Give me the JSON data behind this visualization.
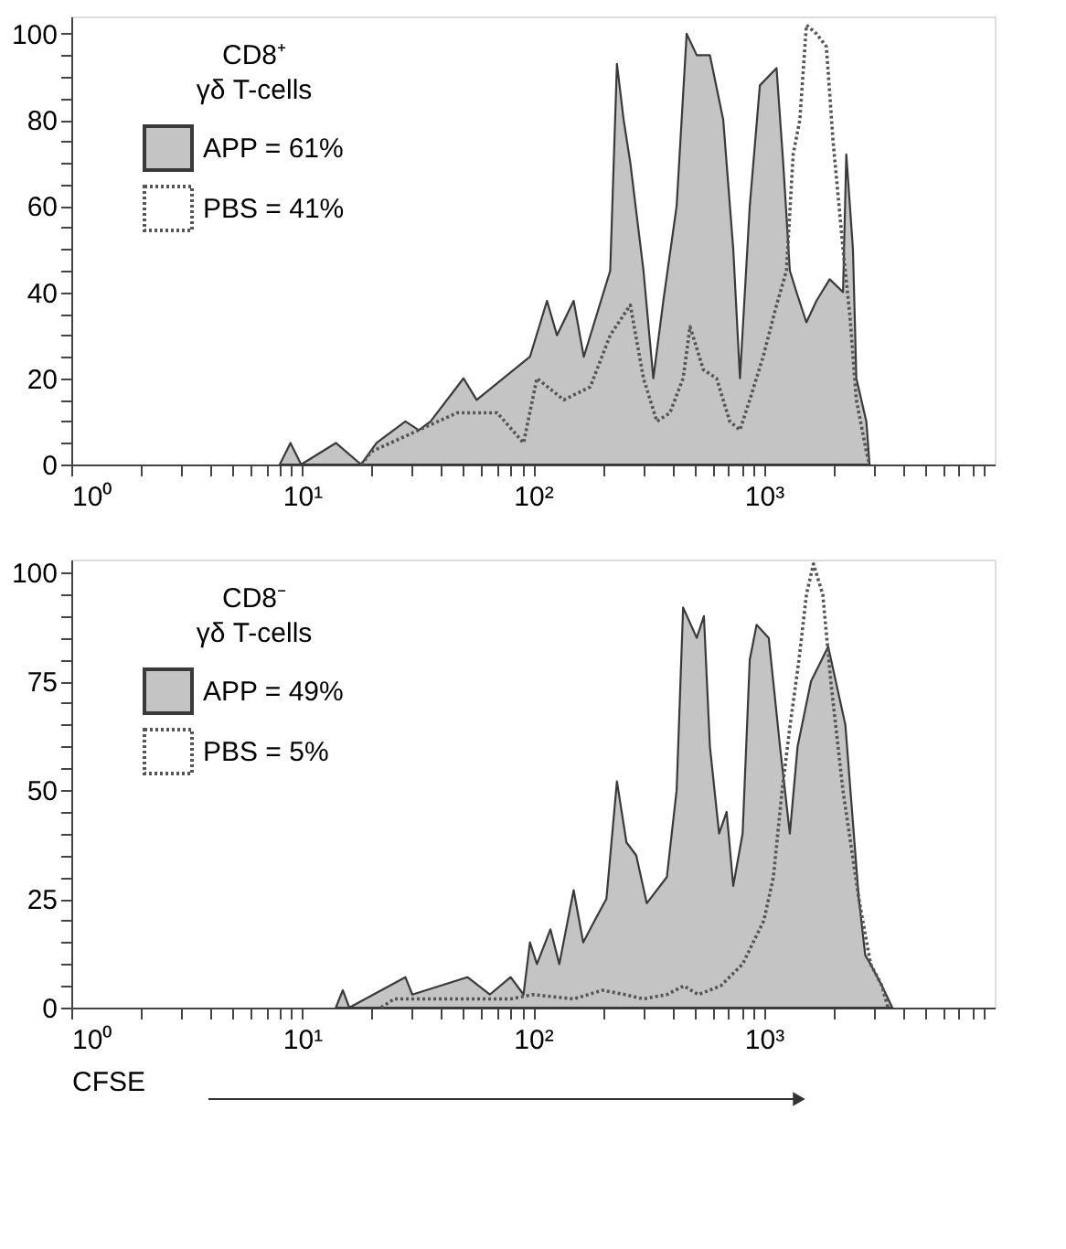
{
  "chart_data": [
    {
      "type": "area",
      "legend_title": "CD8⁺\nγδ T-cells",
      "legend": "top left",
      "log": "x",
      "xlim": [
        1,
        10000
      ],
      "ylim": [
        0,
        104
      ],
      "xticks": [
        {
          "value": 1,
          "label": "10⁰"
        },
        {
          "value": 2,
          "label": null
        },
        {
          "value": 3,
          "label": null
        },
        {
          "value": 4,
          "label": null
        },
        {
          "value": 5,
          "label": null
        },
        {
          "value": 6,
          "label": null
        },
        {
          "value": 7,
          "label": null
        },
        {
          "value": 8,
          "label": null
        },
        {
          "value": 9,
          "label": null
        },
        {
          "value": 10,
          "label": "10¹"
        },
        {
          "value": 20,
          "label": null
        },
        {
          "value": 30,
          "label": null
        },
        {
          "value": 40,
          "label": null
        },
        {
          "value": 50,
          "label": null
        },
        {
          "value": 60,
          "label": null
        },
        {
          "value": 70,
          "label": null
        },
        {
          "value": 80,
          "label": null
        },
        {
          "value": 90,
          "label": null
        },
        {
          "value": 100,
          "label": "10²"
        },
        {
          "value": 200,
          "label": null
        },
        {
          "value": 300,
          "label": null
        },
        {
          "value": 400,
          "label": null
        },
        {
          "value": 500,
          "label": null
        },
        {
          "value": 600,
          "label": null
        },
        {
          "value": 700,
          "label": null
        },
        {
          "value": 800,
          "label": null
        },
        {
          "value": 900,
          "label": null
        },
        {
          "value": 1000,
          "label": "10³"
        },
        {
          "value": 2000,
          "label": null
        },
        {
          "value": 3000,
          "label": null
        },
        {
          "value": 4000,
          "label": null
        },
        {
          "value": 5000,
          "label": null
        },
        {
          "value": 6000,
          "label": null
        },
        {
          "value": 7000,
          "label": null
        },
        {
          "value": 8000,
          "label": null
        },
        {
          "value": 9000,
          "label": null
        }
      ],
      "yticks": [
        0,
        {
          "value": 5,
          "label": null
        },
        {
          "value": 10,
          "label": null
        },
        {
          "value": 15,
          "label": null
        },
        20,
        {
          "value": 25,
          "label": null
        },
        {
          "value": 30,
          "label": null
        },
        {
          "value": 35,
          "label": null
        },
        40,
        {
          "value": 45,
          "label": null
        },
        {
          "value": 50,
          "label": null
        },
        {
          "value": 55,
          "label": null
        },
        60,
        {
          "value": 65,
          "label": null
        },
        {
          "value": 70,
          "label": null
        },
        {
          "value": 75,
          "label": null
        },
        80,
        {
          "value": 85,
          "label": null
        },
        {
          "value": 90,
          "label": null
        },
        {
          "value": 95,
          "label": null
        },
        100
      ],
      "series": [
        {
          "name": "APP = 61%",
          "color": "#c4c4c4",
          "x": [
            8,
            8.9,
            9.9,
            14,
            18,
            21,
            28,
            32,
            36,
            50,
            57,
            97,
            115,
            127,
            150,
            166,
            216,
            231,
            247,
            264,
            301,
            332,
            367,
            419,
            463,
            512,
            584,
            667,
            737,
            788,
            869,
            961,
            1135,
            1213,
            1296,
            1385,
            1529,
            1690,
            1929,
            2203,
            2276,
            2432,
            2516,
            2780,
            2870
          ],
          "values": [
            0,
            5,
            0,
            5,
            0,
            5,
            10,
            8,
            10,
            20,
            15,
            25,
            38,
            30,
            38,
            25,
            45,
            93,
            80,
            70,
            45,
            20,
            38,
            60,
            100,
            95,
            95,
            80,
            50,
            20,
            60,
            88,
            92,
            70,
            45,
            40,
            33,
            38,
            43,
            40,
            72,
            50,
            20,
            10,
            0
          ]
        },
        {
          "name": "PBS = 41%",
          "type": "line",
          "line_style": "dotted",
          "color": "#555555",
          "x": [
            18,
            20,
            32,
            47,
            70,
            91,
            104,
            136,
            177,
            216,
            264,
            301,
            344,
            392,
            447,
            479,
            547,
            624,
            712,
            788,
            869,
            993,
            1135,
            1253,
            1340,
            1432,
            1529,
            1690,
            1866,
            1995,
            2203,
            2355,
            2516,
            2780,
            2870
          ],
          "values": [
            0,
            3,
            8,
            12,
            12,
            5,
            20,
            15,
            18,
            30,
            37,
            20,
            10,
            12,
            20,
            32,
            22,
            20,
            10,
            8,
            15,
            25,
            37,
            45,
            72,
            80,
            102,
            100,
            97,
            75,
            50,
            35,
            15,
            3,
            0
          ]
        }
      ]
    },
    {
      "type": "area",
      "legend_title": "CD8⁻\nγδ T-cells",
      "legend": "top left",
      "log": "x",
      "xlabel": "CFSE",
      "xlim": [
        1,
        10000
      ],
      "ylim": [
        0,
        103
      ],
      "xticks": [
        {
          "value": 1,
          "label": "10⁰"
        },
        {
          "value": 2,
          "label": null
        },
        {
          "value": 3,
          "label": null
        },
        {
          "value": 4,
          "label": null
        },
        {
          "value": 5,
          "label": null
        },
        {
          "value": 6,
          "label": null
        },
        {
          "value": 7,
          "label": null
        },
        {
          "value": 8,
          "label": null
        },
        {
          "value": 9,
          "label": null
        },
        {
          "value": 10,
          "label": "10¹"
        },
        {
          "value": 20,
          "label": null
        },
        {
          "value": 30,
          "label": null
        },
        {
          "value": 40,
          "label": null
        },
        {
          "value": 50,
          "label": null
        },
        {
          "value": 60,
          "label": null
        },
        {
          "value": 70,
          "label": null
        },
        {
          "value": 80,
          "label": null
        },
        {
          "value": 90,
          "label": null
        },
        {
          "value": 100,
          "label": "10²"
        },
        {
          "value": 200,
          "label": null
        },
        {
          "value": 300,
          "label": null
        },
        {
          "value": 400,
          "label": null
        },
        {
          "value": 500,
          "label": null
        },
        {
          "value": 600,
          "label": null
        },
        {
          "value": 700,
          "label": null
        },
        {
          "value": 800,
          "label": null
        },
        {
          "value": 900,
          "label": null
        },
        {
          "value": 1000,
          "label": "10³"
        },
        {
          "value": 2000,
          "label": null
        },
        {
          "value": 3000,
          "label": null
        },
        {
          "value": 4000,
          "label": null
        },
        {
          "value": 5000,
          "label": null
        },
        {
          "value": 6000,
          "label": null
        },
        {
          "value": 7000,
          "label": null
        },
        {
          "value": 8000,
          "label": null
        },
        {
          "value": 9000,
          "label": null
        }
      ],
      "yticks": [
        0,
        {
          "value": 5,
          "label": null
        },
        {
          "value": 10,
          "label": null
        },
        {
          "value": 15,
          "label": null
        },
        {
          "value": 20,
          "label": null
        },
        25,
        {
          "value": 30,
          "label": null
        },
        {
          "value": 35,
          "label": null
        },
        {
          "value": 40,
          "label": null
        },
        {
          "value": 45,
          "label": null
        },
        50,
        {
          "value": 55,
          "label": null
        },
        {
          "value": 60,
          "label": null
        },
        {
          "value": 65,
          "label": null
        },
        {
          "value": 70,
          "label": null
        },
        75,
        {
          "value": 80,
          "label": null
        },
        {
          "value": 85,
          "label": null
        },
        {
          "value": 90,
          "label": null
        },
        {
          "value": 95,
          "label": null
        },
        100
      ],
      "series": [
        {
          "name": "APP = 49%",
          "color": "#c4c4c4",
          "x": [
            14,
            15,
            16,
            28,
            30,
            52,
            65,
            80,
            91,
            97,
            104,
            119,
            130,
            150,
            165,
            185,
            208,
            231,
            254,
            280,
            311,
            380,
            419,
            447,
            512,
            550,
            584,
            640,
            690,
            737,
            809,
            869,
            930,
            1050,
            1175,
            1296,
            1400,
            1600,
            1900,
            2255,
            2580,
            2750,
            2900,
            3250,
            3600
          ],
          "values": [
            0,
            4,
            0,
            7,
            3,
            7,
            3,
            7,
            3,
            15,
            10,
            18,
            10,
            27,
            15,
            20,
            25,
            52,
            38,
            35,
            24,
            30,
            50,
            92,
            85,
            90,
            60,
            40,
            45,
            28,
            40,
            80,
            88,
            85,
            60,
            40,
            60,
            75,
            83,
            65,
            25,
            12,
            10,
            5,
            0
          ]
        },
        {
          "name": "PBS = 5%",
          "type": "line",
          "line_style": "dotted",
          "color": "#555555",
          "x": [
            22,
            25,
            50,
            80,
            100,
            150,
            200,
            250,
            300,
            380,
            450,
            520,
            650,
            809,
            1000,
            1100,
            1200,
            1300,
            1420,
            1530,
            1640,
            1800,
            1950,
            2200,
            2580,
            2900,
            3250,
            3450
          ],
          "values": [
            0,
            2,
            2,
            2,
            3,
            2,
            4,
            3,
            2,
            3,
            5,
            3,
            5,
            10,
            20,
            30,
            50,
            65,
            80,
            95,
            102,
            95,
            75,
            50,
            25,
            10,
            5,
            0
          ]
        }
      ]
    }
  ]
}
